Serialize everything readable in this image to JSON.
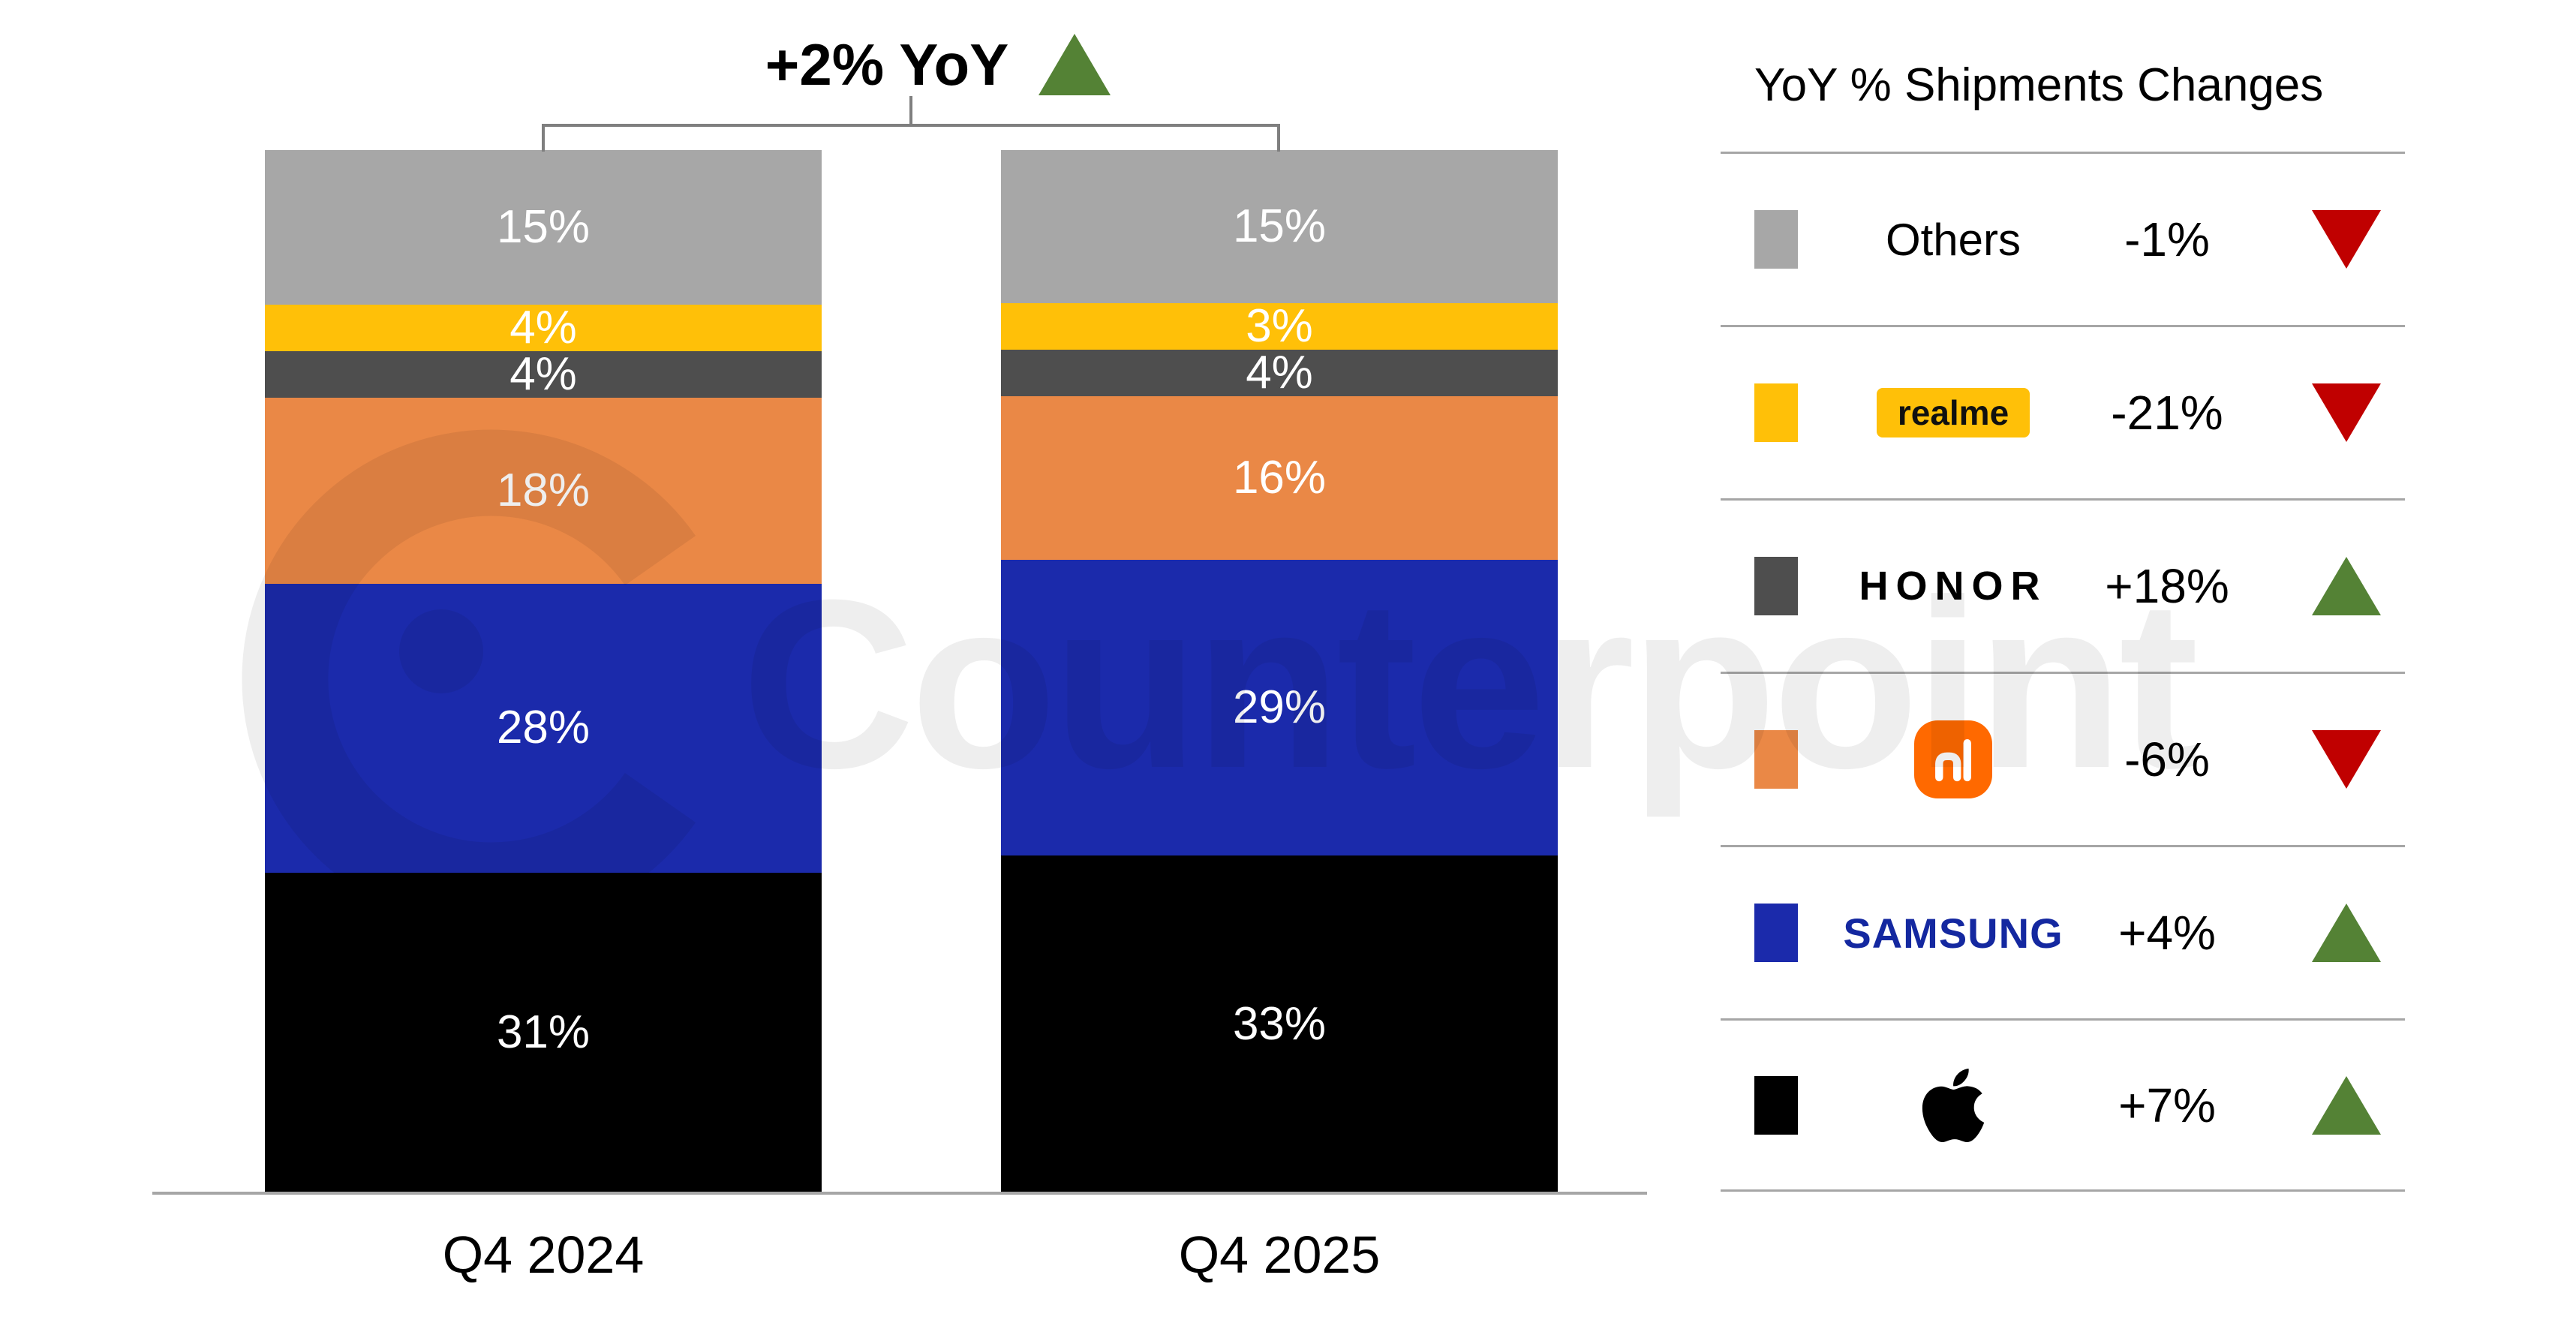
{
  "header": {
    "label": "+2% YoY",
    "trend": "up"
  },
  "watermark": {
    "text": "Counterpoint"
  },
  "chart_data": {
    "type": "bar",
    "stacked": true,
    "unit": "%",
    "title": "+2% YoY",
    "legend_position": "right",
    "categories": [
      "Q4 2024",
      "Q4 2025"
    ],
    "series": [
      {
        "name": "Apple",
        "color": "#000000",
        "values": [
          31,
          33
        ],
        "yoy_change": "+7%",
        "trend": "up"
      },
      {
        "name": "Samsung",
        "color": "#1B2AAB",
        "values": [
          28,
          29
        ],
        "yoy_change": "+4%",
        "trend": "up"
      },
      {
        "name": "Xiaomi",
        "color": "#EA8846",
        "values": [
          18,
          16
        ],
        "yoy_change": "-6%",
        "trend": "down"
      },
      {
        "name": "HONOR",
        "color": "#4E4E4E",
        "values": [
          4,
          4
        ],
        "yoy_change": "+18%",
        "trend": "up"
      },
      {
        "name": "realme",
        "color": "#FFC008",
        "values": [
          4,
          3
        ],
        "yoy_change": "-21%",
        "trend": "down"
      },
      {
        "name": "Others",
        "color": "#A7A7A7",
        "values": [
          15,
          15
        ],
        "yoy_change": "-1%",
        "trend": "down"
      }
    ],
    "total_yoy_change": "+2%"
  },
  "legend": {
    "title": "YoY % Shipments Changes",
    "rows": [
      {
        "brand": "Others",
        "display": "text",
        "swatch": "#A7A7A7",
        "change": "-1%",
        "trend": "down"
      },
      {
        "brand": "realme",
        "display": "badge",
        "swatch": "#FFC008",
        "change": "-21%",
        "trend": "down"
      },
      {
        "brand": "HONOR",
        "display": "honor",
        "swatch": "#4E4E4E",
        "change": "+18%",
        "trend": "up"
      },
      {
        "brand": "mi",
        "display": "mi",
        "swatch": "#EA8846",
        "change": "-6%",
        "trend": "down"
      },
      {
        "brand": "SAMSUNG",
        "display": "samsung",
        "swatch": "#1B2AAB",
        "change": "+4%",
        "trend": "up"
      },
      {
        "brand": "Apple",
        "display": "apple",
        "swatch": "#000000",
        "change": "+7%",
        "trend": "up"
      }
    ]
  },
  "colors": {
    "up": "#548235",
    "down": "#C00000",
    "axis": "#A6A6A6",
    "bracket": "#7F7F7F",
    "samsung_text": "#1428A0",
    "mi_logo_bg": "#FF6900",
    "realme_badge_bg": "#FFC008",
    "bar_label": "#FFFFFF"
  }
}
